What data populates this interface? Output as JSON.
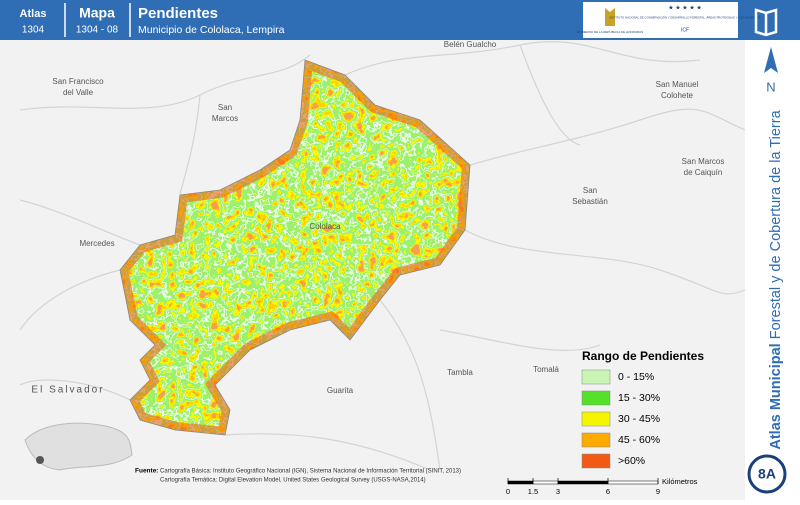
{
  "header": {
    "atlas_label": "Atlas",
    "atlas_number": "1304",
    "map_label": "Mapa",
    "map_number": "1304 - 08",
    "title": "Pendientes",
    "subtitle": "Municipio de Cololaca, Lempira"
  },
  "logos": {
    "government": "GOBIERNO DE LA REPÚBLICA DE HONDURAS",
    "institute": "INSTITUTO NACIONAL DE CONSERVACIÓN Y DESARROLLO FORESTAL, ÁREAS PROTEGIDAS Y VIDA SILVESTRE",
    "institute_short": "ICF"
  },
  "map": {
    "places": [
      {
        "lines": [
          "Belén Gualcho"
        ]
      },
      {
        "lines": [
          "San Francisco",
          "del Valle"
        ]
      },
      {
        "lines": [
          "San",
          "Marcos"
        ]
      },
      {
        "lines": [
          "San Manuel",
          "Colohete"
        ]
      },
      {
        "lines": [
          "San Marcos",
          "de Caiquín"
        ]
      },
      {
        "lines": [
          "San",
          "Sebastián"
        ]
      },
      {
        "lines": [
          "Mercedes"
        ]
      },
      {
        "lines": [
          "Cololaca"
        ]
      },
      {
        "lines": [
          "El Salvador"
        ]
      },
      {
        "lines": [
          "Guarita"
        ]
      },
      {
        "lines": [
          "Tambla"
        ]
      },
      {
        "lines": [
          "Tomalá"
        ]
      }
    ]
  },
  "legend": {
    "title": "Rango de Pendientes",
    "items": [
      {
        "label": "0 - 15%",
        "color": "#c8f5b4"
      },
      {
        "label": "15 - 30%",
        "color": "#55e02a"
      },
      {
        "label": "30 - 45%",
        "color": "#f5f500"
      },
      {
        "label": "45 - 60%",
        "color": "#ffaa00"
      },
      {
        "label": ">60%",
        "color": "#f05a14"
      }
    ]
  },
  "source": {
    "label": "Fuente:",
    "lines": [
      "Cartografía Básica: Instituto Geográfico Nacional (IGN), Sistema Nacional de Información Territorial (SINIT, 2013)",
      "Cartografía Temática: Digital Elevation Model, United States Geological Survey (USGS-NASA,2014)"
    ]
  },
  "scale_bar": {
    "ticks": [
      0,
      1.5,
      3,
      6,
      9
    ],
    "unit": "Kilómetros"
  },
  "sidebar": {
    "north": "N",
    "title_bold": "Atlas Municipal",
    "title_rest": "Forestal y de Cobertura de la Tierra",
    "page": "8A"
  }
}
